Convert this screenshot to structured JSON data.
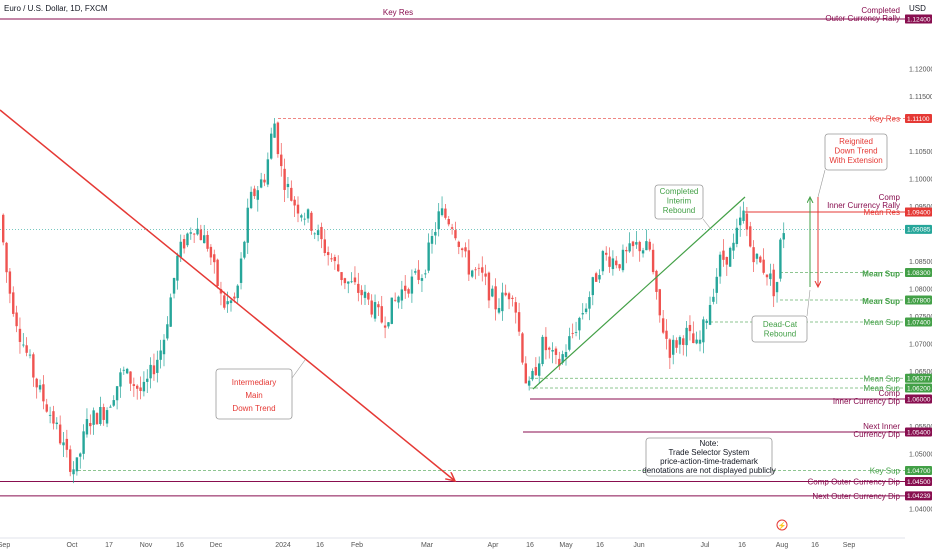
{
  "header": {
    "symbol": "Euro / U.S. Dollar, 1D, FXCM",
    "currency": "USD"
  },
  "chart_data": {
    "type": "candlestick",
    "title": "Euro / U.S. Dollar, 1D, FXCM",
    "ylabel": "USD",
    "ylim": [
      1.0325,
      1.1275
    ],
    "x_ticks": [
      "Sep",
      "Oct",
      "17",
      "Nov",
      "16",
      "Dec",
      "2024",
      "16",
      "Feb",
      "Mar",
      "Apr",
      "16",
      "May",
      "16",
      "Jun",
      "Jul",
      "16",
      "Aug",
      "16",
      "Sep"
    ],
    "y_ticks": [
      "1.12000",
      "1.11500",
      "1.10500",
      "1.10000",
      "1.09500",
      "1.08500",
      "1.08000",
      "1.07500",
      "1.07000",
      "1.06500",
      "1.05500",
      "1.05000",
      "1.04000"
    ],
    "levels": [
      {
        "label": "Key Res",
        "value": 1.124,
        "tag": "1.12400",
        "color": "#880e4f",
        "style": "solid"
      },
      {
        "label": "Completed Outer Currency Rally",
        "value": 1.124,
        "tag": "1.12400",
        "color": "#880e4f",
        "style": "solid"
      },
      {
        "label": "Key Res",
        "value": 1.111,
        "tag": "1.11100",
        "color": "#e53935",
        "style": "dashed"
      },
      {
        "label": "Comp Inner Currency Rally",
        "value": 1.094,
        "tag": "1.09400",
        "color": "#880e4f",
        "style": "solid"
      },
      {
        "label": "Mean Res",
        "value": 1.094,
        "tag": "1.09400",
        "color": "#e53935",
        "style": "solid"
      },
      {
        "label": "Mean Sup",
        "value": 1.083,
        "tag": "1.08300",
        "color": "#43a047",
        "style": "dashed"
      },
      {
        "label": "Mean Sup",
        "value": 1.078,
        "tag": "1.07800",
        "color": "#43a047",
        "style": "dashed"
      },
      {
        "label": "Mean Sup",
        "value": 1.074,
        "tag": "1.07400",
        "color": "#43a047",
        "style": "dashed"
      },
      {
        "label": "Mean Sup",
        "value": 1.06377,
        "tag": "1.06377",
        "color": "#43a047",
        "style": "dashed"
      },
      {
        "label": "Mean Sup",
        "value": 1.062,
        "tag": "1.06200",
        "color": "#43a047",
        "style": "dashed"
      },
      {
        "label": "Comp Inner Currency Dip",
        "value": 1.06,
        "tag": "1.06000",
        "color": "#880e4f",
        "style": "solid"
      },
      {
        "label": "Next Inner Currency Dip",
        "value": 1.054,
        "tag": "1.05400",
        "color": "#880e4f",
        "style": "solid"
      },
      {
        "label": "Key Sup",
        "value": 1.047,
        "tag": "1.04700",
        "color": "#43a047",
        "style": "dashed"
      },
      {
        "label": "Comp Outer Currency Dip",
        "value": 1.045,
        "tag": "1.04500",
        "color": "#880e4f",
        "style": "solid"
      },
      {
        "label": "Next Outer Currency Dip",
        "value": 1.04239,
        "tag": "1.04239",
        "color": "#880e4f",
        "style": "solid"
      }
    ],
    "current_price": {
      "value": 1.09085,
      "tag": "1.09085",
      "color": "#26a69a"
    },
    "annotations": [
      {
        "text": "Intermediary Main Down Trend",
        "color": "#e53935"
      },
      {
        "text": "Completed Interim Rebound",
        "color": "#43a047"
      },
      {
        "text": "Reignited Down Trend With Extension",
        "color": "#e53935"
      },
      {
        "text": "Dead-Cat Rebound",
        "color": "#43a047"
      },
      {
        "text": "Note: Trade Selector System price-action-time-trademark denotations are not displayed publicly",
        "color": "#131722"
      }
    ],
    "colors": {
      "up": "#26a69a",
      "down": "#ef5350"
    }
  }
}
